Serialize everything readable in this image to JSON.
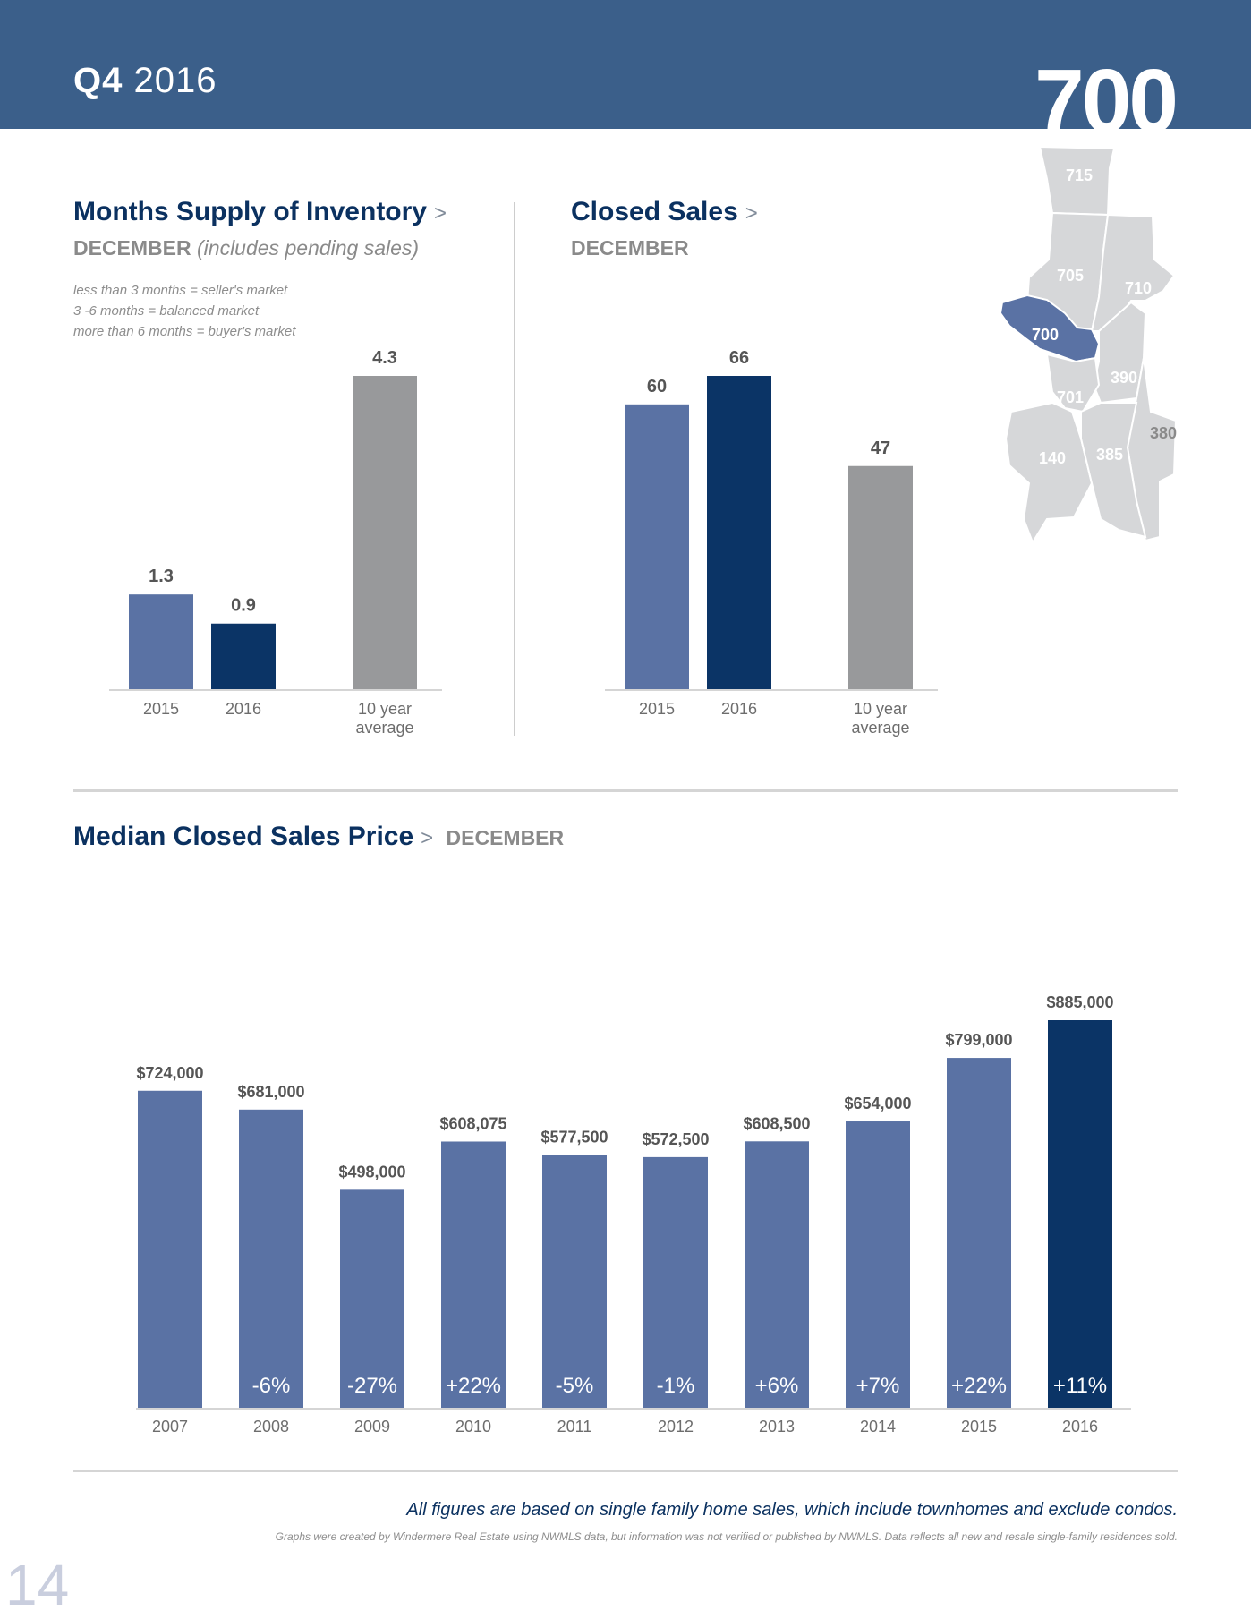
{
  "header": {
    "quarter_bold": "Q4",
    "quarter_year": "2016",
    "area_code": "700"
  },
  "supply": {
    "title": "Months Supply of Inventory",
    "chevron": ">",
    "subtitle": "DECEMBER",
    "subtitle_note": "(includes pending sales)",
    "notes": [
      "less than 3 months = seller's market",
      "3 -6 months = balanced market",
      "more than 6 months = buyer's market"
    ]
  },
  "closed": {
    "title": "Closed Sales",
    "chevron": ">",
    "subtitle": "DECEMBER"
  },
  "median": {
    "title": "Median Closed Sales Price",
    "chevron": ">",
    "subtitle": "DECEMBER"
  },
  "map": {
    "labels": [
      "715",
      "705",
      "710",
      "700",
      "390",
      "701",
      "380",
      "140",
      "385"
    ],
    "highlight": "700",
    "highlight_color": "#5a72a4",
    "base_color": "#d6d7d9"
  },
  "colors": {
    "prev_year": "#5a72a4",
    "current_year": "#0b3466",
    "average": "#98999b",
    "banner": "#3b5f8a"
  },
  "chart_data": [
    {
      "type": "bar",
      "title": "Months Supply of Inventory",
      "categories": [
        "2015",
        "2016",
        "10 year average"
      ],
      "values": [
        1.3,
        0.9,
        4.3
      ],
      "value_labels": [
        "1.3",
        "0.9",
        "4.3"
      ],
      "ylim": [
        0,
        4.3
      ]
    },
    {
      "type": "bar",
      "title": "Closed Sales",
      "categories": [
        "2015",
        "2016",
        "10 year average"
      ],
      "values": [
        60,
        66,
        47
      ],
      "value_labels": [
        "60",
        "66",
        "47"
      ],
      "ylim": [
        0,
        66
      ]
    },
    {
      "type": "bar",
      "title": "Median Closed Sales Price",
      "categories": [
        "2007",
        "2008",
        "2009",
        "2010",
        "2011",
        "2012",
        "2013",
        "2014",
        "2015",
        "2016"
      ],
      "values": [
        724000,
        681000,
        498000,
        608075,
        577500,
        572500,
        608500,
        654000,
        799000,
        885000
      ],
      "value_labels": [
        "$724,000",
        "$681,000",
        "$498,000",
        "$608,075",
        "$577,500",
        "$572,500",
        "$608,500",
        "$654,000",
        "$799,000",
        "$885,000"
      ],
      "changes": [
        "",
        "-6%",
        "-27%",
        "+22%",
        "-5%",
        "-1%",
        "+6%",
        "+7%",
        "+22%",
        "+11%"
      ],
      "ylim": [
        0,
        885000
      ]
    }
  ],
  "footer": {
    "note": "All figures are based on single family home sales, which include townhomes and exclude condos.",
    "disclaimer": "Graphs were created by Windermere Real Estate using NWMLS data, but information was not verified or published by NWMLS. Data reflects all new and resale single-family residences sold.",
    "page_number": "14"
  }
}
